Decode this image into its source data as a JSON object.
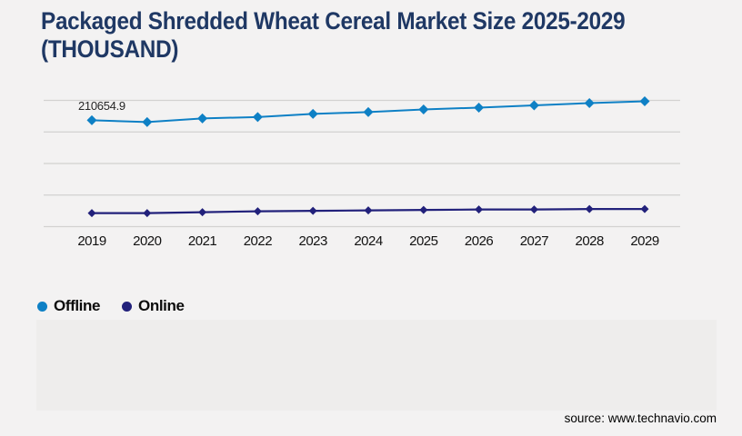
{
  "title": {
    "line1": "Packaged Shredded Wheat Cereal Market Size 2025-2029",
    "line2": "(THOUSAND)"
  },
  "source": "source: www.technavio.com",
  "colors": {
    "background": "#f3f2f2",
    "panel": "#eeedec",
    "title": "#1f3864",
    "gridline": "#d2d1d0",
    "offline": "#0e80c5",
    "online": "#22217b",
    "axis_text": "#121212"
  },
  "chart_data": {
    "type": "line",
    "title": "Packaged Shredded Wheat Cereal Market Size 2025-2029 (THOUSAND)",
    "categories": [
      "2019",
      "2020",
      "2021",
      "2022",
      "2023",
      "2024",
      "2025",
      "2026",
      "2027",
      "2028",
      "2029"
    ],
    "series": [
      {
        "name": "Offline",
        "color": "#0e80c5",
        "marker": "diamond",
        "values": [
          210654.9,
          207100,
          214300,
          217000,
          223200,
          226800,
          232100,
          235700,
          240200,
          244600,
          248200
        ]
      },
      {
        "name": "Online",
        "color": "#22217b",
        "marker": "diamond",
        "values": [
          26800,
          26800,
          28600,
          30400,
          31300,
          32100,
          33000,
          33900,
          33900,
          34800,
          34800
        ]
      }
    ],
    "xlabel": "",
    "ylabel": "",
    "ylim": [
      0,
      250000
    ],
    "y_axis_labels_visible": false,
    "gridline_count": 5,
    "grid": "horizontal",
    "legend_position": "bottom-left",
    "data_labels": [
      {
        "series": "Offline",
        "category": "2019",
        "label": "210654.9"
      }
    ],
    "values_note": "Only the 2019 Offline value is labeled on the chart; all other values estimated from gridlines (ylim 0-250000)."
  }
}
